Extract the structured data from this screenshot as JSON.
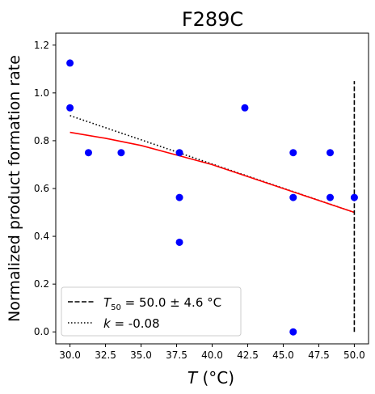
{
  "chart_data": {
    "type": "scatter",
    "title": "F289C",
    "xlabel_italic": "T",
    "xlabel_rest": " (°C)",
    "ylabel": "Normalized product formation rate",
    "xlim": [
      29.0,
      51.0
    ],
    "ylim": [
      -0.05,
      1.25
    ],
    "xticks": [
      30.0,
      32.5,
      35.0,
      37.5,
      40.0,
      42.5,
      45.0,
      47.5,
      50.0
    ],
    "xtick_labels": [
      "30.0",
      "32.5",
      "35.0",
      "37.5",
      "40.0",
      "42.5",
      "45.0",
      "47.5",
      "50.0"
    ],
    "yticks": [
      0.0,
      0.2,
      0.4,
      0.6,
      0.8,
      1.0,
      1.2
    ],
    "ytick_labels": [
      "0.0",
      "0.2",
      "0.4",
      "0.6",
      "0.8",
      "1.0",
      "1.2"
    ],
    "grid": false,
    "points": {
      "color": "#0000ff",
      "x": [
        30.0,
        30.0,
        31.3,
        33.6,
        37.7,
        37.7,
        37.7,
        42.3,
        45.7,
        45.7,
        45.7,
        48.3,
        48.3,
        50.0
      ],
      "y": [
        1.125,
        0.9375,
        0.75,
        0.75,
        0.75,
        0.5625,
        0.375,
        0.9375,
        0.75,
        0.5625,
        0.0,
        0.75,
        0.5625,
        0.5625
      ]
    },
    "sigmoid_fit": {
      "color": "#ff0000",
      "x": [
        30.0,
        32.5,
        35.0,
        37.5,
        40.0,
        42.5,
        45.0,
        47.5,
        50.0
      ],
      "y": [
        0.835,
        0.81,
        0.78,
        0.74,
        0.7,
        0.65,
        0.6,
        0.55,
        0.5
      ]
    },
    "linear_fit": {
      "color": "#000000",
      "x": [
        30.0,
        50.0
      ],
      "y": [
        0.905,
        0.5
      ]
    },
    "t50_line": {
      "color": "#000000",
      "x": 50.0,
      "y": [
        0.0,
        1.05
      ]
    },
    "legend": {
      "position": "lower-left",
      "entries": [
        {
          "style": "dashed",
          "prefix_italic": "T",
          "subscript": "50",
          "text": " = 50.0 ± 4.6 °C"
        },
        {
          "style": "dotted",
          "prefix_italic": "k",
          "subscript": "",
          "text": " = -0.08"
        }
      ]
    }
  }
}
